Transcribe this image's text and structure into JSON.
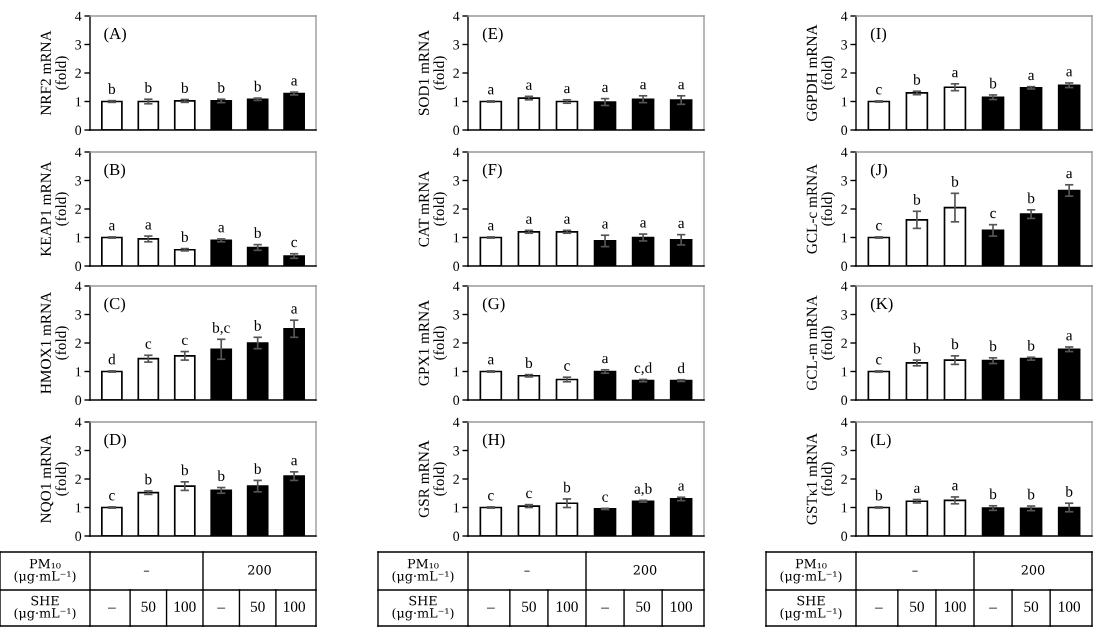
{
  "chart_data": [
    {
      "type": "bar",
      "title": "(A)",
      "ylabel": "NRF2 mRNA\n(fold)",
      "categories": [
        null,
        null,
        null,
        null,
        null,
        null
      ],
      "values": [
        1.0,
        1.0,
        1.02,
        1.02,
        1.08,
        1.28
      ],
      "errors": [
        0.03,
        0.08,
        0.05,
        0.06,
        0.04,
        0.05
      ],
      "value_labels": [
        "b",
        "b",
        "b",
        "b",
        "b",
        "a"
      ],
      "colors": [
        "#ffffff",
        "#ffffff",
        "#ffffff",
        "#000000",
        "#000000",
        "#000000"
      ],
      "ylim": [
        0,
        4
      ],
      "yticks": [
        0,
        1,
        2,
        3,
        4
      ]
    },
    {
      "type": "bar",
      "title": "(B)",
      "ylabel": "KEAP1 mRNA\n(fold)",
      "categories": [
        null,
        null,
        null,
        null,
        null,
        null
      ],
      "values": [
        1.0,
        0.95,
        0.57,
        0.9,
        0.65,
        0.35
      ],
      "errors": [
        0.02,
        0.1,
        0.04,
        0.05,
        0.1,
        0.08
      ],
      "value_labels": [
        "a",
        "a",
        "b",
        "a",
        "b",
        "c"
      ],
      "colors": [
        "#ffffff",
        "#ffffff",
        "#ffffff",
        "#000000",
        "#000000",
        "#000000"
      ],
      "ylim": [
        0,
        4
      ],
      "yticks": [
        0,
        1,
        2,
        3,
        4
      ]
    },
    {
      "type": "bar",
      "title": "(C)",
      "ylabel": "HMOX1 mRNA\n(fold)",
      "categories": [
        null,
        null,
        null,
        null,
        null,
        null
      ],
      "values": [
        1.0,
        1.45,
        1.55,
        1.78,
        2.0,
        2.5
      ],
      "errors": [
        0.02,
        0.12,
        0.15,
        0.35,
        0.2,
        0.3
      ],
      "value_labels": [
        "d",
        "c",
        "c",
        "b,c",
        "b",
        "a"
      ],
      "colors": [
        "#ffffff",
        "#ffffff",
        "#ffffff",
        "#000000",
        "#000000",
        "#000000"
      ],
      "ylim": [
        0,
        4
      ],
      "yticks": [
        0,
        1,
        2,
        3,
        4
      ]
    },
    {
      "type": "bar",
      "title": "(D)",
      "ylabel": "NQO1 mRNA\n(fold)",
      "categories": [
        "–",
        "50",
        "100",
        "–",
        "50",
        "100"
      ],
      "values": [
        1.0,
        1.52,
        1.75,
        1.6,
        1.75,
        2.1
      ],
      "errors": [
        0.02,
        0.06,
        0.15,
        0.1,
        0.2,
        0.15
      ],
      "value_labels": [
        "c",
        "b",
        "b",
        "b",
        "b",
        "a"
      ],
      "colors": [
        "#ffffff",
        "#ffffff",
        "#ffffff",
        "#000000",
        "#000000",
        "#000000"
      ],
      "ylim": [
        0,
        4
      ],
      "yticks": [
        0,
        1,
        2,
        3,
        4
      ],
      "annotations": [
        "PM₁₀\n(μg·mL⁻¹)",
        "–",
        "200",
        "SHE\n(μg·mL⁻¹)"
      ]
    },
    {
      "type": "bar",
      "title": "(E)",
      "ylabel": "SOD1 mRNA\n(fold)",
      "categories": [
        null,
        null,
        null,
        null,
        null,
        null
      ],
      "values": [
        1.0,
        1.12,
        1.0,
        0.98,
        1.08,
        1.05
      ],
      "errors": [
        0.02,
        0.06,
        0.06,
        0.12,
        0.12,
        0.15
      ],
      "value_labels": [
        "a",
        "a",
        "a",
        "a",
        "a",
        "a"
      ],
      "colors": [
        "#ffffff",
        "#ffffff",
        "#ffffff",
        "#000000",
        "#000000",
        "#000000"
      ],
      "ylim": [
        0,
        4
      ],
      "yticks": [
        0,
        1,
        2,
        3,
        4
      ]
    },
    {
      "type": "bar",
      "title": "(F)",
      "ylabel": "CAT mRNA\n(fold)",
      "categories": [
        null,
        null,
        null,
        null,
        null,
        null
      ],
      "values": [
        1.0,
        1.2,
        1.2,
        0.88,
        1.0,
        0.92
      ],
      "errors": [
        0.02,
        0.05,
        0.05,
        0.2,
        0.12,
        0.18
      ],
      "value_labels": [
        "a",
        "a",
        "a",
        "a",
        "a",
        "a"
      ],
      "colors": [
        "#ffffff",
        "#ffffff",
        "#ffffff",
        "#000000",
        "#000000",
        "#000000"
      ],
      "ylim": [
        0,
        4
      ],
      "yticks": [
        0,
        1,
        2,
        3,
        4
      ]
    },
    {
      "type": "bar",
      "title": "(G)",
      "ylabel": "GPX1 mRNA\n(fold)",
      "categories": [
        null,
        null,
        null,
        null,
        null,
        null
      ],
      "values": [
        1.0,
        0.85,
        0.72,
        1.0,
        0.68,
        0.68
      ],
      "errors": [
        0.02,
        0.04,
        0.08,
        0.06,
        0.04,
        0.03
      ],
      "value_labels": [
        "a",
        "b",
        "c",
        "a",
        "c,d",
        "d"
      ],
      "colors": [
        "#ffffff",
        "#ffffff",
        "#ffffff",
        "#000000",
        "#000000",
        "#000000"
      ],
      "ylim": [
        0,
        4
      ],
      "yticks": [
        0,
        1,
        2,
        3,
        4
      ]
    },
    {
      "type": "bar",
      "title": "(H)",
      "ylabel": "GSR mRNA\n(fold)",
      "categories": [
        "–",
        "50",
        "100",
        "–",
        "50",
        "100"
      ],
      "values": [
        1.0,
        1.05,
        1.15,
        0.95,
        1.22,
        1.3
      ],
      "errors": [
        0.02,
        0.05,
        0.15,
        0.02,
        0.03,
        0.06
      ],
      "value_labels": [
        "c",
        "c",
        "b",
        "c",
        "a,b",
        "a"
      ],
      "colors": [
        "#ffffff",
        "#ffffff",
        "#ffffff",
        "#000000",
        "#000000",
        "#000000"
      ],
      "ylim": [
        0,
        4
      ],
      "yticks": [
        0,
        1,
        2,
        3,
        4
      ],
      "annotations": [
        "PM₁₀\n(μg·mL⁻¹)",
        "–",
        "200",
        "SHE\n(μg·mL⁻¹)"
      ]
    },
    {
      "type": "bar",
      "title": "(I)",
      "ylabel": "G6PDH mRNA\n(fold)",
      "categories": [
        null,
        null,
        null,
        null,
        null,
        null
      ],
      "values": [
        1.0,
        1.3,
        1.5,
        1.15,
        1.48,
        1.57
      ],
      "errors": [
        0.02,
        0.06,
        0.12,
        0.08,
        0.04,
        0.08
      ],
      "value_labels": [
        "c",
        "b",
        "a",
        "b",
        "a",
        "a"
      ],
      "colors": [
        "#ffffff",
        "#ffffff",
        "#ffffff",
        "#000000",
        "#000000",
        "#000000"
      ],
      "ylim": [
        0,
        4
      ],
      "yticks": [
        0,
        1,
        2,
        3,
        4
      ]
    },
    {
      "type": "bar",
      "title": "(J)",
      "ylabel": "GCL-c mRNA\n(fold)",
      "categories": [
        null,
        null,
        null,
        null,
        null,
        null
      ],
      "values": [
        1.0,
        1.62,
        2.05,
        1.25,
        1.82,
        2.65
      ],
      "errors": [
        0.02,
        0.3,
        0.5,
        0.2,
        0.15,
        0.2
      ],
      "value_labels": [
        "c",
        "b",
        "b",
        "c",
        "b",
        "a"
      ],
      "colors": [
        "#ffffff",
        "#ffffff",
        "#ffffff",
        "#000000",
        "#000000",
        "#000000"
      ],
      "ylim": [
        0,
        4
      ],
      "yticks": [
        0,
        1,
        2,
        3,
        4
      ]
    },
    {
      "type": "bar",
      "title": "(K)",
      "ylabel": "GCL-m mRNA\n(fold)",
      "categories": [
        null,
        null,
        null,
        null,
        null,
        null
      ],
      "values": [
        1.0,
        1.3,
        1.4,
        1.38,
        1.45,
        1.78
      ],
      "errors": [
        0.02,
        0.1,
        0.15,
        0.1,
        0.05,
        0.08
      ],
      "value_labels": [
        "c",
        "b",
        "b",
        "b",
        "b",
        "a"
      ],
      "colors": [
        "#ffffff",
        "#ffffff",
        "#ffffff",
        "#000000",
        "#000000",
        "#000000"
      ],
      "ylim": [
        0,
        4
      ],
      "yticks": [
        0,
        1,
        2,
        3,
        4
      ]
    },
    {
      "type": "bar",
      "title": "(L)",
      "ylabel": "GSTκ1 mRNA\n(fold)",
      "categories": [
        "–",
        "50",
        "100",
        "–",
        "50",
        "100"
      ],
      "values": [
        1.0,
        1.22,
        1.25,
        0.98,
        0.97,
        1.0
      ],
      "errors": [
        0.02,
        0.06,
        0.12,
        0.08,
        0.08,
        0.15
      ],
      "value_labels": [
        "b",
        "a",
        "a",
        "b",
        "b",
        "b"
      ],
      "colors": [
        "#ffffff",
        "#ffffff",
        "#ffffff",
        "#000000",
        "#000000",
        "#000000"
      ],
      "ylim": [
        0,
        4
      ],
      "yticks": [
        0,
        1,
        2,
        3,
        4
      ],
      "annotations": [
        "PM₁₀\n(μg·mL⁻¹)",
        "–",
        "200",
        "SHE\n(μg·mL⁻¹)"
      ]
    }
  ]
}
